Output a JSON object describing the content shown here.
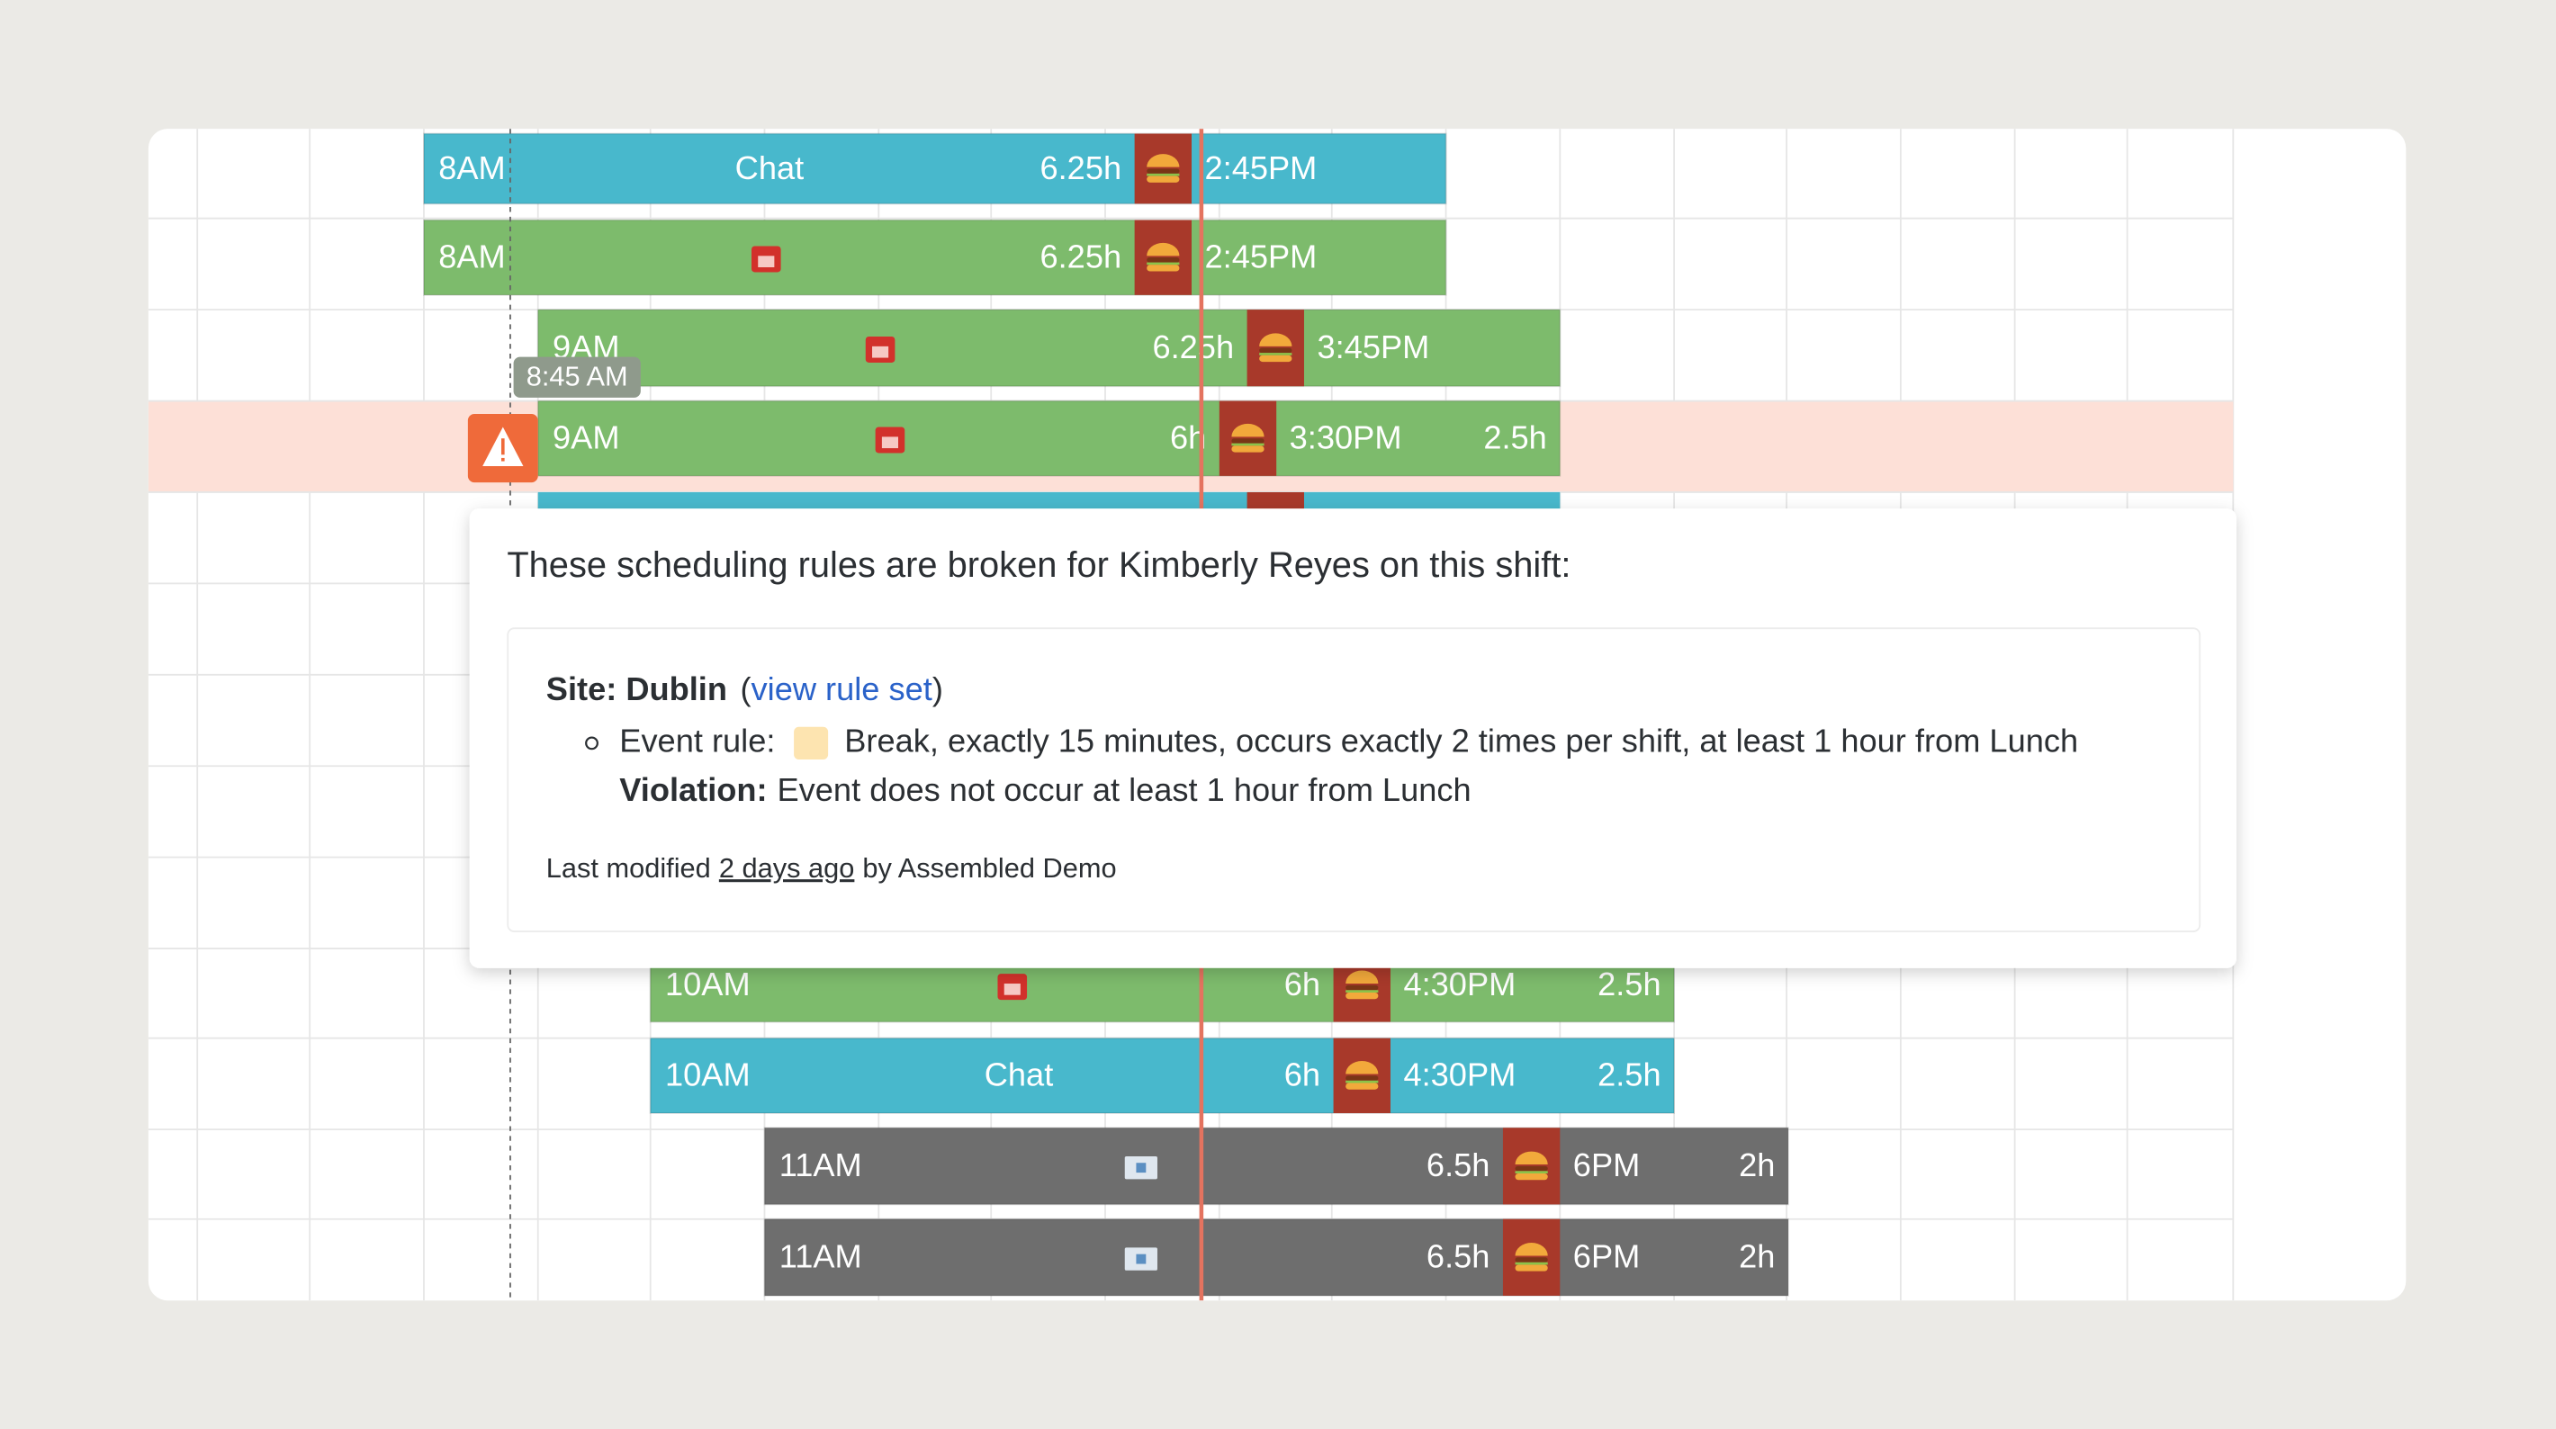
{
  "shifts": [
    {
      "start": "8AM",
      "label": "Chat",
      "duration": "6.25h",
      "end": "2:45PM",
      "color": "#48b8cc"
    },
    {
      "start": "8AM",
      "duration": "6.25h",
      "end": "2:45PM",
      "color": "#7dbb6c"
    },
    {
      "start": "9AM",
      "duration": "6.25h",
      "end": "3:45PM",
      "color": "#7dbb6c"
    },
    {
      "start": "9AM",
      "duration": "6h",
      "end": "3:30PM",
      "extra": "2.5h",
      "color": "#7dbb6c"
    },
    {
      "start": "10AM",
      "duration": "6h",
      "end": "4:30PM",
      "extra": "2.5h",
      "color": "#7dbb6c"
    },
    {
      "start": "10AM",
      "label": "Chat",
      "duration": "6h",
      "end": "4:30PM",
      "extra": "2.5h",
      "color": "#48b8cc"
    },
    {
      "start": "11AM",
      "duration": "6.5h",
      "end": "6PM",
      "extra": "2h",
      "color": "#6e6e6e"
    },
    {
      "start": "11AM",
      "duration": "6.5h",
      "end": "6PM",
      "extra": "2h",
      "color": "#6e6e6e"
    }
  ],
  "time_tooltip": "8:45 AM",
  "popup": {
    "title": "These scheduling rules are broken for Kimberly Reyes on this shift:",
    "site": "Site: Dublin",
    "paren_open": "(",
    "link": "view rule set",
    "paren_close": ")",
    "rule_label": "Event rule:",
    "rule_text": "Break, exactly 15 minutes, occurs exactly 2 times per shift, at least 1 hour from Lunch",
    "violation_label": "Violation:",
    "violation_text": "Event does not occur at least 1 hour from Lunch",
    "footer_prefix": "Last modified",
    "footer_time": "2 days ago",
    "footer_suffix": "by Assembled Demo"
  }
}
